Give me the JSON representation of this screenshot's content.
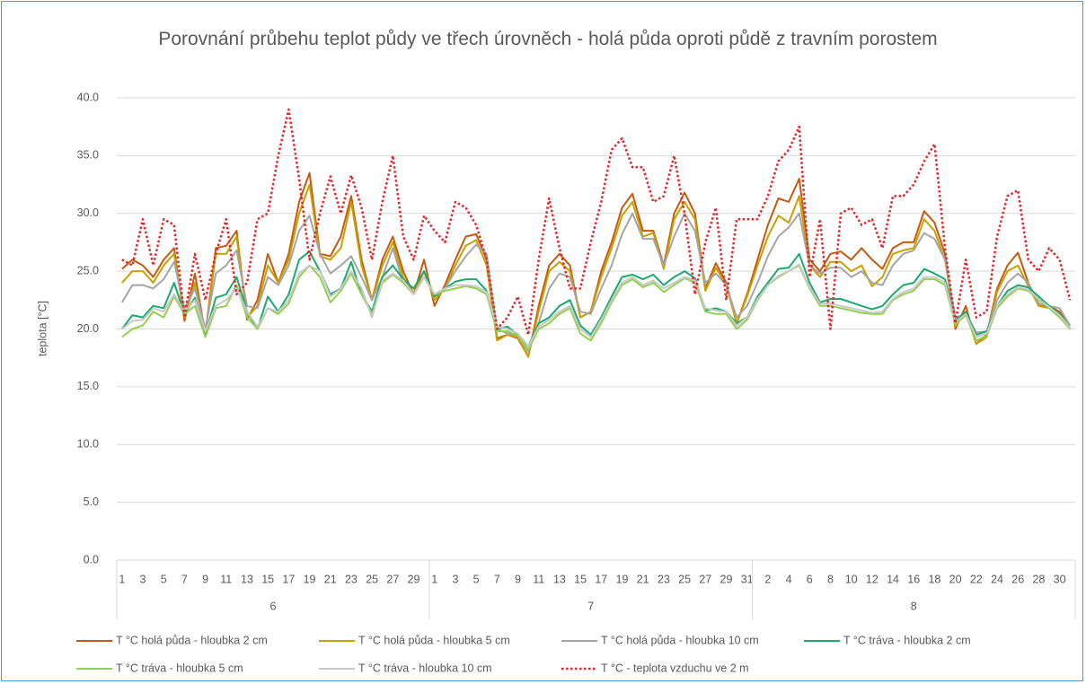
{
  "chart_data": {
    "type": "line",
    "title": "Porovnání průbehu teplot půdy ve třech úrovněch - holá půda oproti půdě z travním porostem",
    "y_label": "teplota [°C]",
    "ylim": [
      0,
      40
    ],
    "yticks": [
      {
        "value": 0,
        "label": "0.0"
      },
      {
        "value": 5,
        "label": "5.0"
      },
      {
        "value": 10,
        "label": "10.0"
      },
      {
        "value": 15,
        "label": "15.0"
      },
      {
        "value": 20,
        "label": "20.0"
      },
      {
        "value": 25,
        "label": "25.0"
      },
      {
        "value": 30,
        "label": "30.0"
      },
      {
        "value": 35,
        "label": "35.0"
      },
      {
        "value": 40,
        "label": "40.0"
      }
    ],
    "grid": true,
    "legend": "bottom",
    "category_groups": [
      {
        "label": "6",
        "categories": [
          "1",
          null,
          "3",
          null,
          "5",
          null,
          "7",
          null,
          "9",
          null,
          "11",
          null,
          "13",
          null,
          "15",
          null,
          "17",
          null,
          "19",
          null,
          "21",
          null,
          "23",
          null,
          "25",
          null,
          "27",
          null,
          "29",
          null
        ]
      },
      {
        "label": "7",
        "categories": [
          "1",
          null,
          "3",
          null,
          "5",
          null,
          "7",
          null,
          "9",
          null,
          "11",
          null,
          "13",
          null,
          "15",
          null,
          "17",
          null,
          "19",
          null,
          "21",
          null,
          "23",
          null,
          "25",
          null,
          "27",
          null,
          "29",
          null,
          "31"
        ]
      },
      {
        "label": "8",
        "categories": [
          null,
          "2",
          null,
          "4",
          null,
          "6",
          null,
          "8",
          null,
          "10",
          null,
          "12",
          null,
          "14",
          null,
          "16",
          null,
          "18",
          null,
          "20",
          null,
          "22",
          null,
          "24",
          null,
          "26",
          null,
          "28",
          null,
          "30",
          null
        ]
      }
    ],
    "series": [
      {
        "name": "T °C holá půda - hloubka 2 cm",
        "color": "#c55a11",
        "dash": false,
        "values": [
          25.2,
          26,
          25.5,
          24.5,
          26,
          27,
          20.7,
          24.8,
          19.5,
          27,
          27.2,
          28.5,
          20.8,
          22.5,
          26.5,
          24,
          26.5,
          31,
          33.5,
          26.5,
          26.3,
          28,
          31.5,
          26,
          22.5,
          26,
          28,
          25,
          23,
          26,
          22,
          23.8,
          26,
          28,
          28.2,
          26,
          19.2,
          19.5,
          19.2,
          17.6,
          22,
          25.5,
          26.5,
          25.5,
          21,
          21.5,
          25,
          27.5,
          30.5,
          31.7,
          28.5,
          28.5,
          25.5,
          30,
          31.8,
          30,
          23.5,
          25.7,
          24,
          20.5,
          23,
          26,
          29,
          31.3,
          31,
          33,
          26,
          25,
          26.5,
          26.7,
          26,
          27,
          26,
          25.2,
          27,
          27.5,
          27.5,
          30.2,
          29.2,
          26.5,
          20,
          22,
          18.7,
          19.5,
          23.5,
          25.5,
          26.6,
          24,
          22,
          22,
          21.5,
          20.3
        ]
      },
      {
        "name": "T °C holá půda - hloubka 5 cm",
        "color": "#c9a000",
        "dash": false,
        "values": [
          24,
          25,
          25,
          24,
          25.5,
          26.5,
          21,
          24,
          19.5,
          26.5,
          26.5,
          28,
          21,
          22,
          25.5,
          24,
          26,
          30,
          32.5,
          26.3,
          26,
          27,
          31,
          25.5,
          22.5,
          25.5,
          27.5,
          24.5,
          23,
          25,
          22.5,
          23.5,
          25.5,
          27.2,
          27.7,
          25.5,
          19,
          19.5,
          19.3,
          17.6,
          21.5,
          25,
          25.8,
          25,
          21,
          21.5,
          24.5,
          27,
          29.8,
          31,
          28,
          28.3,
          25.2,
          29.5,
          31,
          29.5,
          23.3,
          25.3,
          23.8,
          20.5,
          22.8,
          25.5,
          28,
          29.8,
          29.2,
          31.5,
          25.5,
          24.5,
          25.8,
          25.8,
          25,
          25.5,
          23.7,
          24.5,
          26.5,
          26.8,
          27,
          29.5,
          28.5,
          26,
          20.2,
          21.5,
          18.7,
          19.3,
          23.2,
          25,
          25.5,
          23.7,
          22,
          21.8,
          21.2,
          20.3
        ]
      },
      {
        "name": "T °C holá půda - hloubka 10 cm",
        "color": "#a5a5a5",
        "dash": false,
        "values": [
          22.3,
          23.8,
          23.8,
          23.5,
          24.3,
          25.8,
          21.8,
          23.5,
          20,
          24.8,
          25.5,
          26.8,
          22,
          21.8,
          24.5,
          23.8,
          25.5,
          28.5,
          29.8,
          26.5,
          24.8,
          25.5,
          26.3,
          24.5,
          22.5,
          24.5,
          27,
          24,
          23,
          24.5,
          23,
          23.5,
          25,
          26.3,
          27.3,
          26.5,
          20,
          19.6,
          19.5,
          18,
          20.5,
          23.5,
          24.8,
          24.5,
          21.5,
          21.3,
          23.5,
          25.5,
          28.2,
          30,
          27.8,
          27.8,
          25.5,
          28,
          30,
          28.5,
          24,
          24.8,
          23.8,
          21,
          22,
          24,
          26.3,
          28,
          28.8,
          30,
          25.5,
          24.8,
          25.3,
          25.3,
          24.5,
          25,
          24,
          23.8,
          25.5,
          26.5,
          26.8,
          28.3,
          27.8,
          26,
          21,
          21.3,
          19.7,
          19.8,
          22.5,
          24,
          24.8,
          24,
          22.2,
          22,
          21.8,
          20.3
        ]
      },
      {
        "name": "T °C tráva - hloubka 2 cm",
        "color": "#1aaa6e",
        "dash": false,
        "values": [
          20,
          21.2,
          21,
          22,
          21.8,
          24,
          21.3,
          22.7,
          19.5,
          22.7,
          23,
          24.5,
          21.5,
          20,
          22.8,
          21.5,
          23,
          26,
          26.7,
          25,
          23,
          23.5,
          25.8,
          23,
          21.5,
          24.5,
          25.5,
          24.3,
          23.5,
          25,
          22.8,
          23.5,
          24.1,
          24.3,
          24.3,
          23.3,
          20,
          20.2,
          19.5,
          18.5,
          20.5,
          21,
          22,
          22.5,
          20.3,
          19.5,
          21,
          22.8,
          24.5,
          24.7,
          24.3,
          24.7,
          23.8,
          24.5,
          25,
          24.4,
          21.6,
          21.8,
          21.5,
          20.5,
          21,
          22.8,
          24,
          25.2,
          25.3,
          26.5,
          24,
          22.3,
          22.6,
          22.6,
          22.3,
          22,
          21.7,
          22,
          23,
          23.8,
          24,
          25.2,
          24.8,
          24.3,
          20.7,
          21.5,
          19.5,
          19.8,
          22,
          23.3,
          23.8,
          23.6,
          22.8,
          22,
          21.3,
          20.1
        ]
      },
      {
        "name": "T °C tráva - hloubka 5 cm",
        "color": "#92d050",
        "dash": false,
        "values": [
          19.3,
          20,
          20.3,
          21.5,
          21,
          22.8,
          21.3,
          22,
          19.3,
          21.8,
          22,
          23.8,
          21,
          20,
          21.8,
          21.3,
          22.2,
          24.5,
          25.5,
          24.5,
          22.3,
          23.3,
          24.8,
          23,
          21.3,
          24,
          24.7,
          24,
          23,
          24.5,
          23,
          23.3,
          23.5,
          23.7,
          23.5,
          23,
          19.8,
          19.8,
          19.4,
          18.2,
          20,
          20.5,
          21.3,
          21.8,
          19.6,
          19,
          20.5,
          22.3,
          23.8,
          24.3,
          23.6,
          24,
          23.2,
          23.8,
          24.4,
          24,
          21.5,
          21.3,
          21.3,
          20,
          20.8,
          22.5,
          23.8,
          24.5,
          25,
          25.5,
          23.5,
          22,
          22,
          21.8,
          21.6,
          21.4,
          21.3,
          21.3,
          22.5,
          23,
          23.3,
          24.3,
          24.3,
          23.8,
          20.4,
          21.2,
          19,
          19.4,
          21.8,
          22.8,
          23.5,
          23.3,
          22.5,
          21.8,
          21,
          20
        ]
      },
      {
        "name": "T °C tráva - hloubka 10 cm",
        "color": "#c8c8c8",
        "dash": false,
        "values": [
          20,
          20.7,
          20.8,
          21.8,
          21.5,
          23,
          21.5,
          22.5,
          19.8,
          22,
          22.5,
          23.5,
          21.5,
          20.2,
          21.8,
          21.5,
          22.5,
          24.8,
          25.5,
          25,
          22.8,
          23.5,
          25,
          23.5,
          21,
          24.2,
          24.8,
          24.2,
          23,
          24.5,
          23,
          23.5,
          23.8,
          23.8,
          23.7,
          23.2,
          20.2,
          20,
          19.6,
          18.5,
          20.2,
          20.8,
          21.5,
          22,
          20,
          19.3,
          20.8,
          22.5,
          24,
          24.5,
          23.8,
          24.2,
          23.5,
          24,
          24.5,
          24.2,
          21.8,
          21.6,
          21.5,
          20.3,
          21,
          22.6,
          23.8,
          24.6,
          25,
          25.6,
          23.6,
          22.2,
          22.2,
          22,
          21.8,
          21.6,
          21.4,
          21.5,
          22.6,
          23.2,
          23.5,
          24.5,
          24.5,
          24,
          20.6,
          21.3,
          19.3,
          19.6,
          22,
          23,
          23.6,
          23.4,
          22.6,
          21.9,
          21.2,
          20.1
        ]
      },
      {
        "name": "T °C - teplota vzduchu ve 2 m",
        "color": "#e3262b",
        "dash": true,
        "values": [
          26,
          25.5,
          29.5,
          25.5,
          29.5,
          29,
          21,
          26.5,
          22.5,
          26.5,
          29.5,
          23,
          24,
          29.5,
          30,
          35,
          39,
          33,
          26,
          30,
          33.2,
          30,
          33.3,
          30.5,
          26,
          31,
          35,
          28,
          26,
          29.8,
          28.5,
          27.5,
          31,
          30.5,
          29,
          26,
          20,
          21,
          22.8,
          19.5,
          26,
          31.3,
          27,
          23.5,
          23.5,
          27.5,
          31,
          35.5,
          36.5,
          34,
          34,
          31,
          31.5,
          35,
          30,
          23,
          27.5,
          30.5,
          22.5,
          29.5,
          29.5,
          29.5,
          31.5,
          34.5,
          35.5,
          37.5,
          24.5,
          29.5,
          20,
          30,
          30.5,
          29,
          29.5,
          27,
          31.5,
          31.5,
          32.5,
          34.5,
          36,
          27,
          20.5,
          26,
          21,
          21.5,
          28,
          31.5,
          32,
          26,
          25,
          27,
          26,
          22.5
        ]
      }
    ]
  }
}
